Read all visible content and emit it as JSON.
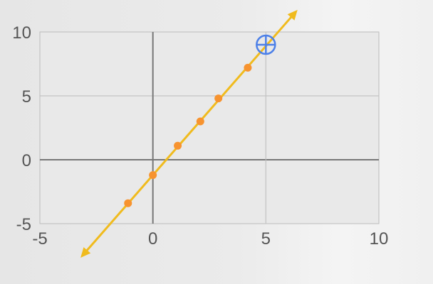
{
  "chart_data": {
    "type": "scatter",
    "xlim": [
      -5,
      10
    ],
    "ylim": [
      -5,
      10
    ],
    "x_ticks": [
      "-5",
      "0",
      "5",
      "10"
    ],
    "y_ticks": [
      "10",
      "5",
      "0",
      "-5"
    ],
    "grid": true,
    "points": [
      {
        "x": -1.1,
        "y": -3.4
      },
      {
        "x": 0.0,
        "y": -1.2
      },
      {
        "x": 1.1,
        "y": 1.1
      },
      {
        "x": 2.1,
        "y": 3.0
      },
      {
        "x": 2.9,
        "y": 4.8
      },
      {
        "x": 4.2,
        "y": 7.2
      }
    ],
    "fit_line": {
      "slope": 2.02,
      "intercept": -1.2,
      "x_from": -3.2,
      "x_to": 6.4
    },
    "cursor": {
      "x": 5.0,
      "y": 9.0
    },
    "colors": {
      "points": "#f7932f",
      "line": "#f0bb1e",
      "cursor": "#4d80e8",
      "axis": "#777777",
      "grid": "#bcbcbc",
      "plot_bg": "#e9e9e9"
    }
  }
}
